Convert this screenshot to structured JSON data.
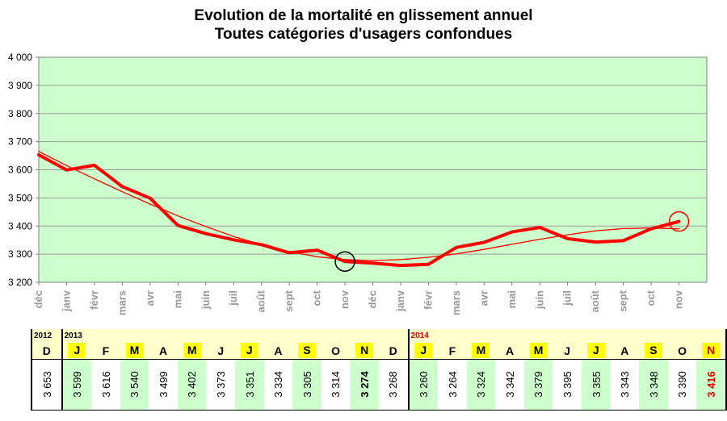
{
  "title_line1": "Evolution de la mortalité en glissement annuel",
  "title_line2": "Toutes catégories d'usagers confondues",
  "colors": {
    "plot_bg": "#ccffcc",
    "series": "#ff0000",
    "trend": "#ff0000",
    "grid": "#999999",
    "table_header_bg": "#ffffcc",
    "month_highlight": "#ffff00",
    "value_highlight": "#ccffcc",
    "current_month": "#e00000"
  },
  "chart_data": {
    "type": "line",
    "title": "Evolution de la mortalité en glissement annuel / Toutes catégories d'usagers confondues",
    "xlabel": "",
    "ylabel": "",
    "ylim": [
      3200,
      4000
    ],
    "yticks": [
      3200,
      3300,
      3400,
      3500,
      3600,
      3700,
      3800,
      3900,
      4000
    ],
    "ytick_labels": [
      "3 200",
      "3 300",
      "3 400",
      "3 500",
      "3 600",
      "3 700",
      "3 800",
      "3 900",
      "4 000"
    ],
    "grid": "horizontal",
    "legend": "none",
    "categories": [
      "déc",
      "janv",
      "févr",
      "mars",
      "avr",
      "mai",
      "juin",
      "juil",
      "août",
      "sept",
      "oct",
      "nov",
      "déc",
      "janv",
      "févr",
      "mars",
      "avr",
      "mai",
      "juin",
      "juil",
      "août",
      "sept",
      "oct",
      "nov"
    ],
    "series": [
      {
        "values": [
          3653,
          3599,
          3616,
          3540,
          3499,
          3402,
          3373,
          3351,
          3334,
          3305,
          3314,
          3274,
          3268,
          3260,
          3264,
          3324,
          3342,
          3379,
          3395,
          3355,
          3343,
          3348,
          3390,
          3416
        ]
      },
      {
        "kind": "trend",
        "values": [
          3665,
          3615,
          3568,
          3522,
          3478,
          3436,
          3398,
          3363,
          3334,
          3309,
          3291,
          3281,
          3277,
          3281,
          3289,
          3301,
          3317,
          3335,
          3353,
          3369,
          3383,
          3391,
          3393,
          3390
        ]
      }
    ],
    "markers": [
      {
        "index": 11,
        "color": "#000000"
      },
      {
        "index": 23,
        "color": "#ff0000"
      }
    ]
  },
  "table": {
    "years": [
      {
        "label": "2012",
        "col": 0
      },
      {
        "label": "2013",
        "col": 1
      },
      {
        "label": "2014",
        "col": 13,
        "red": true
      }
    ],
    "months": [
      "D",
      "J",
      "F",
      "M",
      "A",
      "M",
      "J",
      "J",
      "A",
      "S",
      "O",
      "N",
      "D",
      "J",
      "F",
      "M",
      "A",
      "M",
      "J",
      "J",
      "A",
      "S",
      "O",
      "N"
    ],
    "values": [
      "3 653",
      "3 599",
      "3 616",
      "3 540",
      "3 499",
      "3 402",
      "3 373",
      "3 351",
      "3 334",
      "3 305",
      "3 314",
      "3 274",
      "3 268",
      "3 260",
      "3 264",
      "3 324",
      "3 342",
      "3 379",
      "3 395",
      "3 355",
      "3 343",
      "3 348",
      "3 390",
      "3 416"
    ]
  }
}
